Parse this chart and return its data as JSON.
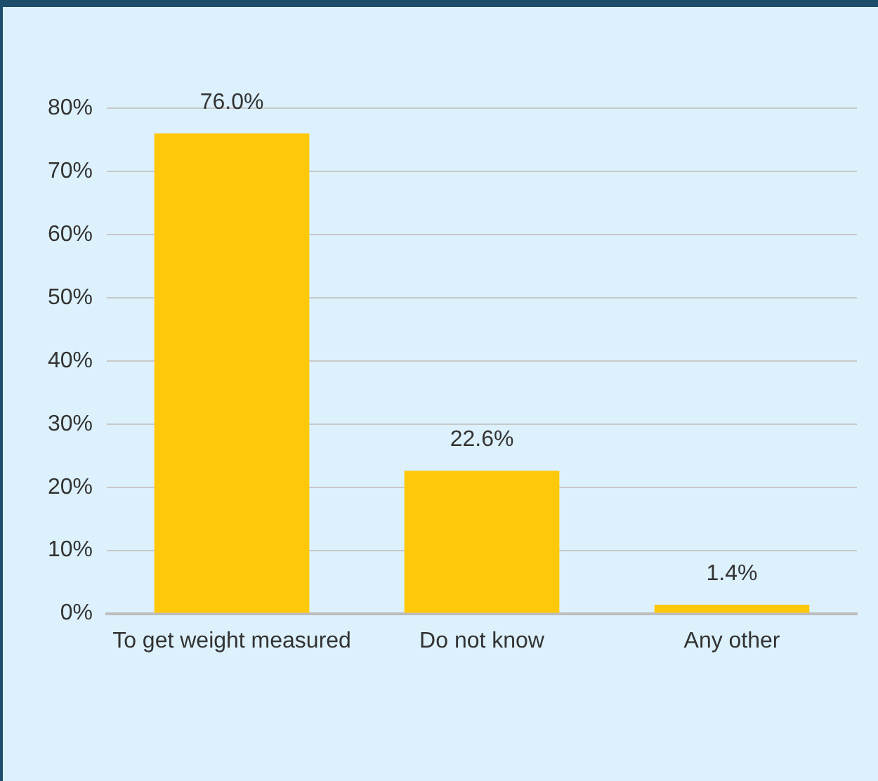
{
  "chart_data": {
    "type": "bar",
    "categories": [
      "To get weight measured",
      "Do not know",
      "Any other"
    ],
    "values": [
      76.0,
      22.6,
      1.4
    ],
    "color": "#ffc90a",
    "value_labels": [
      "76.0%",
      "22.6%",
      "1.4%"
    ],
    "ylim": [
      0,
      80
    ],
    "yticks": [
      {
        "value": 0,
        "label": "0%"
      },
      {
        "value": 10,
        "label": "10%"
      },
      {
        "value": 20,
        "label": "20%"
      },
      {
        "value": 30,
        "label": "30%"
      },
      {
        "value": 40,
        "label": "40%"
      },
      {
        "value": 50,
        "label": "50%"
      },
      {
        "value": 60,
        "label": "60%"
      },
      {
        "value": 70,
        "label": "70%"
      },
      {
        "value": 80,
        "label": "80%"
      }
    ],
    "grid": "y",
    "legend": false
  }
}
